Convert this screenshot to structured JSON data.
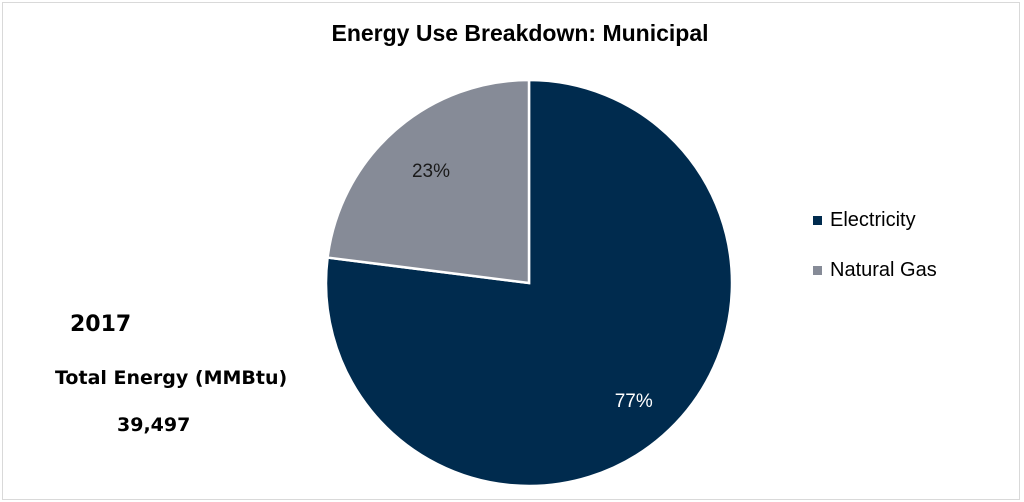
{
  "chart_data": {
    "type": "pie",
    "title": "Energy Use Breakdown: Municipal",
    "categories": [
      "Electricity",
      "Natural Gas"
    ],
    "values": [
      77,
      23
    ],
    "labels": [
      "77%",
      "23%"
    ],
    "colors": [
      "#002b4e",
      "#868b97"
    ],
    "legend": "right"
  },
  "summary": {
    "year": "2017",
    "total_label": "Total Energy (MMBtu)",
    "total_value": "39,497"
  }
}
